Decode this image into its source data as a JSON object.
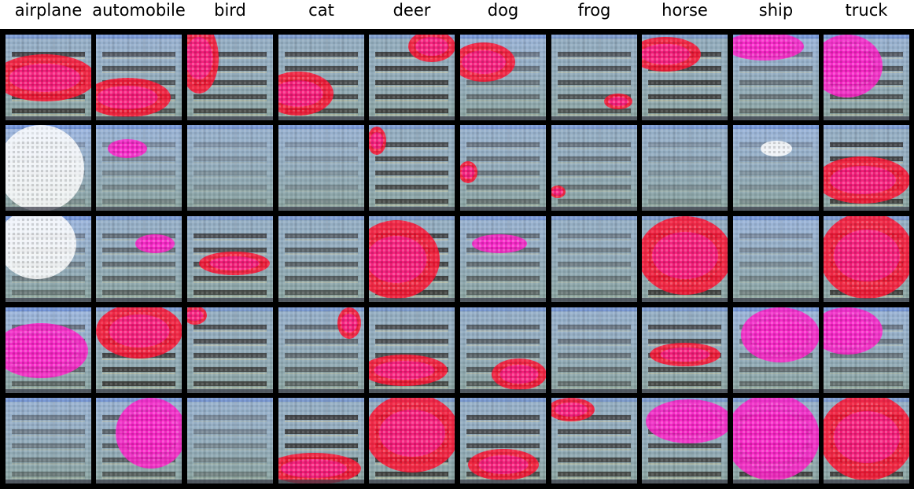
{
  "class_labels": [
    "airplane",
    "automobile",
    "bird",
    "cat",
    "deer",
    "dog",
    "frog",
    "horse",
    "ship",
    "truck"
  ],
  "grid": {
    "rows": 5,
    "columns": 10
  },
  "colors": {
    "panel_background": "#000000",
    "tile_base": "#8aa39e",
    "sky_tint": "#9fb8e6",
    "dark_band": "#1c120e",
    "highlight_magenta": "#ff1fc8",
    "highlight_red": "#ff1030",
    "highlight_white": "#ffffff"
  }
}
